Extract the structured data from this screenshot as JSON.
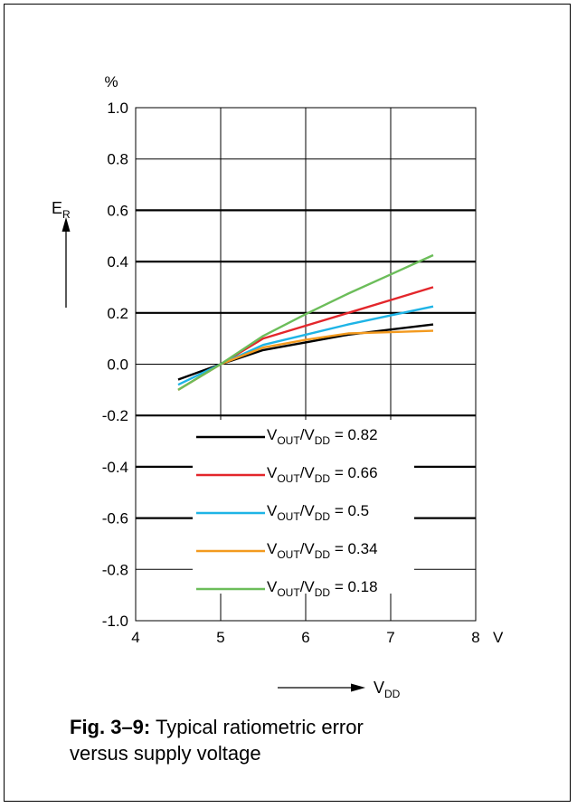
{
  "chart_data": {
    "type": "line",
    "unit_label": "%",
    "y_axis_label": {
      "main": "E",
      "sub": "R"
    },
    "x_axis_unit": "V",
    "x_axis_label": {
      "main": "V",
      "sub": "DD"
    },
    "xlim": [
      4,
      8
    ],
    "ylim": [
      -1.0,
      1.0
    ],
    "x_ticks": [
      "4",
      "5",
      "6",
      "7",
      "8"
    ],
    "y_ticks": [
      "1.0",
      "0.8",
      "0.6",
      "0.4",
      "0.2",
      "0.0",
      "-0.2",
      "-0.4",
      "-0.6",
      "-0.8",
      "-1.0"
    ],
    "y_tick_values": [
      1.0,
      0.8,
      0.6,
      0.4,
      0.2,
      0.0,
      -0.2,
      -0.4,
      -0.6,
      -0.8,
      -1.0
    ],
    "grid": true,
    "legend_position": "bottom-center",
    "series": [
      {
        "legend_main": "V",
        "legend_sub1": "OUT",
        "legend_mid": "/V",
        "legend_sub2": "DD",
        "legend_value": " = 0.82",
        "color": "#000000",
        "x": [
          4.5,
          5.0,
          5.5,
          6.0,
          6.5,
          7.0,
          7.5
        ],
        "y": [
          -0.06,
          0.0,
          0.055,
          0.085,
          0.115,
          0.135,
          0.155
        ]
      },
      {
        "legend_main": "V",
        "legend_sub1": "OUT",
        "legend_mid": "/V",
        "legend_sub2": "DD",
        "legend_value": " = 0.66",
        "color": "#e3262b",
        "x": [
          4.5,
          5.0,
          5.5,
          6.0,
          6.5,
          7.0,
          7.5
        ],
        "y": [
          -0.1,
          0.0,
          0.1,
          0.15,
          0.2,
          0.25,
          0.3
        ]
      },
      {
        "legend_main": "V",
        "legend_sub1": "OUT",
        "legend_mid": "/V",
        "legend_sub2": "DD",
        "legend_value": " = 0.5",
        "color": "#1eb4e6",
        "x": [
          4.5,
          5.0,
          5.5,
          6.0,
          6.5,
          7.0,
          7.5
        ],
        "y": [
          -0.08,
          0.0,
          0.075,
          0.115,
          0.155,
          0.19,
          0.225
        ]
      },
      {
        "legend_main": "V",
        "legend_sub1": "OUT",
        "legend_mid": "/V",
        "legend_sub2": "DD",
        "legend_value": " = 0.34",
        "color": "#f39a1f",
        "x": [
          4.5,
          5.0,
          5.5,
          6.0,
          6.5,
          7.0,
          7.5
        ],
        "y": [
          -0.1,
          0.0,
          0.065,
          0.095,
          0.12,
          0.125,
          0.13
        ]
      },
      {
        "legend_main": "V",
        "legend_sub1": "OUT",
        "legend_mid": "/V",
        "legend_sub2": "DD",
        "legend_value": " = 0.18",
        "color": "#6cbd5a",
        "x": [
          4.5,
          5.0,
          5.5,
          6.0,
          6.5,
          7.0,
          7.5
        ],
        "y": [
          -0.1,
          0.0,
          0.11,
          0.195,
          0.275,
          0.35,
          0.425
        ]
      }
    ]
  },
  "caption": {
    "bold": "Fig. 3–9:",
    "line1": " Typical ratiometric error",
    "line2": "versus supply voltage"
  }
}
